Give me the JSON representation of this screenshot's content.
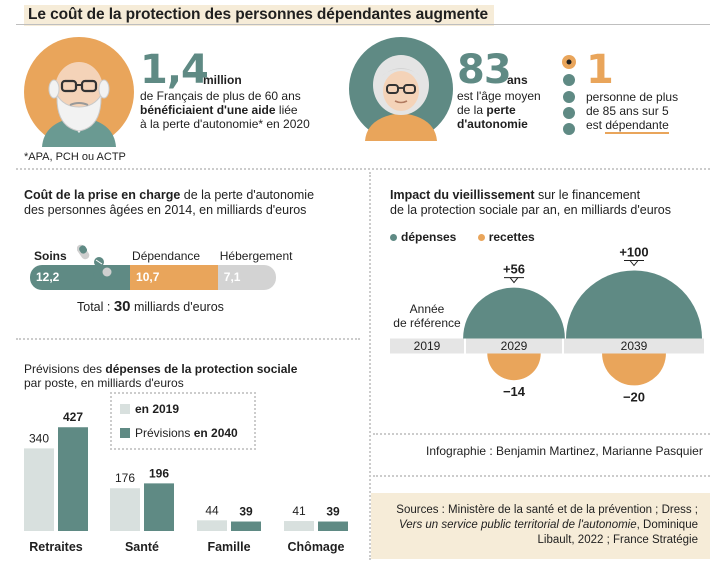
{
  "title": "Le coût de la protection des personnes dépendantes augmente",
  "stat1": {
    "number": "1,4",
    "unit": "million",
    "line1": "de Français de plus de 60 ans",
    "line2": "bénéficiaient d'une aide",
    "line2_rest": " liée",
    "line3": "à la perte d'autonomie* en 2020",
    "footnote": "*APA, PCH ou ACTP"
  },
  "stat2": {
    "number": "83",
    "unit": "ans",
    "line1": "est l'âge moyen",
    "line2_pre": "de la ",
    "line2_bold": "perte",
    "line3": "d'autonomie"
  },
  "stat3": {
    "number": "1",
    "line1": "personne de plus",
    "line2": "de 85 ans sur 5",
    "line3_pre": "est ",
    "line3_ul": "dépendante",
    "colors": {
      "filled": "#e9a55b",
      "other": "#5f8a84"
    }
  },
  "cost": {
    "head_bold": "Coût de la prise en charge",
    "head_rest": " de la perte d'autonomie",
    "head_line2": "des personnes âgées en 2014, en milliards d'euros",
    "total_label": "Total : ",
    "total_value": "30",
    "total_unit": " milliards d'euros",
    "chart_data": {
      "type": "bar",
      "stacked": true,
      "categories": [
        "Soins",
        "Dépendance",
        "Hébergement"
      ],
      "values": [
        12.2,
        10.7,
        7.1
      ],
      "value_labels": [
        "12,2",
        "10,7",
        "7,1"
      ],
      "colors": [
        "#5f8a84",
        "#e9a55b",
        "#d3d3d3"
      ]
    }
  },
  "impact": {
    "head_bold": "Impact du vieillissement",
    "head_rest": " sur le financement",
    "head_line2": "de la protection sociale par an, en milliards d'euros",
    "legend": [
      {
        "label": "dépenses",
        "color": "#5f8a84"
      },
      {
        "label": "recettes",
        "color": "#e9a55b"
      }
    ],
    "ref_label_1": "Année",
    "ref_label_2": "de référence",
    "chart_data": {
      "type": "bar",
      "categories": [
        "2019",
        "2029",
        "2039"
      ],
      "series": [
        {
          "name": "dépenses",
          "values": [
            0,
            56,
            100
          ],
          "labels": [
            "",
            "+56",
            "+100"
          ]
        },
        {
          "name": "recettes",
          "values": [
            0,
            -14,
            -20
          ],
          "labels": [
            "",
            "−14",
            "−20"
          ]
        }
      ]
    }
  },
  "previsions": {
    "head_pre": "Prévisions des ",
    "head_bold": "dépenses de la protection sociale",
    "head_line2": "par poste, en milliards d'euros",
    "legend": [
      {
        "label": "en 2019",
        "color": "#d8e0de"
      },
      {
        "label_pre": "Prévisions ",
        "label_bold": "en 2040",
        "color": "#5f8a84"
      }
    ],
    "chart_data": {
      "type": "bar",
      "categories": [
        "Retraites",
        "Santé",
        "Famille",
        "Chômage"
      ],
      "series": [
        {
          "name": "en 2019",
          "values": [
            340,
            176,
            44,
            41
          ],
          "color": "#d8e0de"
        },
        {
          "name": "Prévisions en 2040",
          "values": [
            427,
            196,
            39,
            39
          ],
          "color": "#5f8a84"
        }
      ]
    }
  },
  "credit": "Infographie : Benjamin Martinez, Marianne Pasquier",
  "sources": {
    "line1": "Sources : Ministère de la santé et de la prévention ; Dress ;",
    "line2_italic": "Vers un service public territorial de l'autonomie",
    "line2_rest": ", Dominique",
    "line3": "Libault, 2022 ; France Stratégie"
  }
}
